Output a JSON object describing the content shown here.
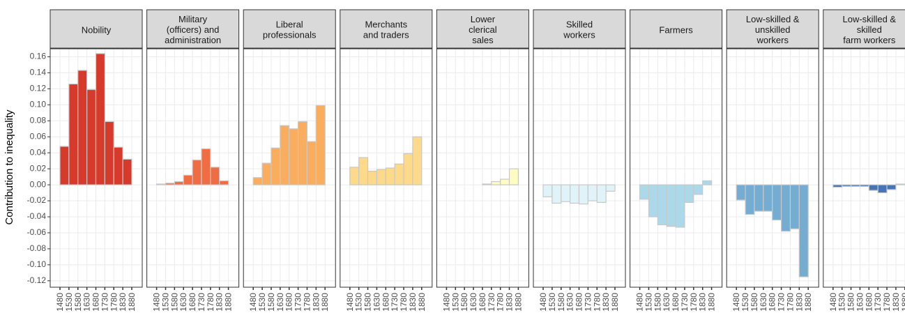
{
  "chart_data": [
    {
      "type": "histogram",
      "title": "Nobility",
      "ylabel": "Contribution to inequality",
      "ylim": [
        -0.128,
        0.17
      ],
      "yticks": [
        0.16,
        0.14,
        0.12,
        {
          "value": 0.1,
          "label": "0.10"
        },
        0.08,
        0.06,
        0.04,
        0.02,
        {
          "value": 0,
          "label": "0.00"
        },
        -0.02,
        -0.04,
        -0.06,
        -0.08,
        {
          "value": -0.1,
          "label": "-0.10"
        },
        -0.12
      ],
      "grid": true,
      "bins": [
        1480,
        1530,
        1580,
        1630,
        1680,
        1730,
        1780,
        1830,
        1880
      ],
      "values": [
        0.048,
        0.126,
        0.143,
        0.119,
        0.164,
        0.079,
        0.047,
        0.032
      ],
      "color": "#d73a2b"
    },
    {
      "type": "histogram",
      "title": "Military\n(officers) and\nadministration",
      "bins": [
        1480,
        1530,
        1580,
        1630,
        1680,
        1730,
        1780,
        1830,
        1880
      ],
      "values": [
        0.001,
        0.002,
        0.004,
        0.012,
        0.031,
        0.045,
        0.022,
        0.005
      ],
      "color": "#f06d43"
    },
    {
      "type": "histogram",
      "title": "Liberal\nprofessionals",
      "bins": [
        1480,
        1530,
        1580,
        1630,
        1680,
        1730,
        1780,
        1830,
        1880
      ],
      "values": [
        0.009,
        0.027,
        0.046,
        0.074,
        0.07,
        0.079,
        0.054,
        0.099
      ],
      "color": "#fbad5e"
    },
    {
      "type": "histogram",
      "title": "Merchants\nand traders",
      "bins": [
        1480,
        1530,
        1580,
        1630,
        1680,
        1730,
        1780,
        1830,
        1880
      ],
      "values": [
        0.022,
        0.034,
        0.017,
        0.019,
        0.021,
        0.026,
        0.039,
        0.06
      ],
      "color": "#fdd98a"
    },
    {
      "type": "histogram",
      "title": "Lower\nclerical\nsales",
      "bins": [
        1480,
        1530,
        1580,
        1630,
        1680,
        1730,
        1780,
        1830,
        1880
      ],
      "values": [
        0,
        0,
        0,
        0,
        0.001,
        0.004,
        0.007,
        0.02
      ],
      "color": "#fefcc0"
    },
    {
      "type": "histogram",
      "title": "Skilled\nworkers",
      "bins": [
        1480,
        1530,
        1580,
        1630,
        1680,
        1730,
        1780,
        1830,
        1880
      ],
      "values": [
        -0.015,
        -0.023,
        -0.021,
        -0.023,
        -0.024,
        -0.02,
        -0.022,
        -0.008
      ],
      "color": "#e0f3f8"
    },
    {
      "type": "histogram",
      "title": "Farmers",
      "bins": [
        1480,
        1530,
        1580,
        1630,
        1680,
        1730,
        1780,
        1830,
        1880
      ],
      "values": [
        -0.018,
        -0.04,
        -0.05,
        -0.052,
        -0.053,
        -0.022,
        -0.012,
        0.005
      ],
      "color": "#abd9e9"
    },
    {
      "type": "histogram",
      "title": "Low-skilled &\nunskilled\nworkers",
      "bins": [
        1480,
        1530,
        1580,
        1630,
        1680,
        1730,
        1780,
        1830,
        1880
      ],
      "values": [
        -0.019,
        -0.037,
        -0.033,
        -0.033,
        -0.044,
        -0.058,
        -0.055,
        -0.115
      ],
      "color": "#74add1"
    },
    {
      "type": "histogram",
      "title": "Low-skilled &\nskilled\nfarm workers",
      "bins": [
        1480,
        1530,
        1580,
        1630,
        1680,
        1730,
        1780,
        1830,
        1880
      ],
      "values": [
        -0.003,
        -0.002,
        -0.002,
        -0.002,
        -0.007,
        -0.01,
        -0.006,
        0.001
      ],
      "color": "#4575b4"
    }
  ]
}
